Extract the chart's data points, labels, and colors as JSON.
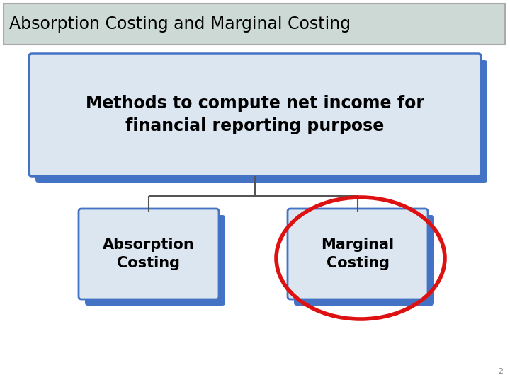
{
  "title": "Absorption Costing and Marginal Costing",
  "subtitle_line1": "Methods to compute net income for",
  "subtitle_line2": "financial reporting purpose",
  "box1_text_line1": "Absorption",
  "box1_text_line2": "Costing",
  "box2_text_line1": "Marginal",
  "box2_text_line2": "Costing",
  "slide_bg": "#ffffff",
  "title_box_bg": "#cdd9d4",
  "title_box_border": "#aaaaaa",
  "blue_shadow": "#4472c4",
  "top_box_bg": "#dce6f1",
  "top_box_border": "#4472c4",
  "child_box_bg": "#dce6f1",
  "child_box_border": "#4472c4",
  "ellipse_color": "#dd1111",
  "connector_color": "#555555",
  "text_color": "#000000",
  "page_num": "2",
  "title_fontsize": 17,
  "subtitle_fontsize": 17,
  "child_fontsize": 15
}
